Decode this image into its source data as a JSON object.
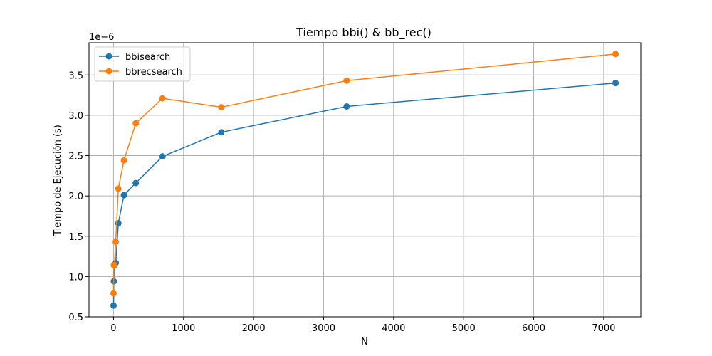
{
  "chart_data": {
    "type": "line",
    "title": "Tiempo bbi() & bb_rec()",
    "xlabel": "N",
    "ylabel": "Tiempo de Ejecución (s)",
    "y_scale_label": "1e−6",
    "xlim": [
      -350,
      7530
    ],
    "ylim": [
      5e-07,
      3.9e-06
    ],
    "x_ticks": [
      0,
      1000,
      2000,
      3000,
      4000,
      5000,
      6000,
      7000
    ],
    "x_tick_labels": [
      "0",
      "1000",
      "2000",
      "3000",
      "4000",
      "5000",
      "6000",
      "7000"
    ],
    "y_ticks": [
      5e-07,
      1e-06,
      1.5e-06,
      2e-06,
      2.5e-06,
      3e-06,
      3.5e-06
    ],
    "y_tick_labels": [
      "0.5",
      "1.0",
      "1.5",
      "2.0",
      "2.5",
      "3.0",
      "3.5"
    ],
    "grid": true,
    "legend_position": "top-left",
    "x": [
      1,
      5,
      14,
      32,
      69,
      149,
      318,
      700,
      1540,
      3330,
      7170
    ],
    "series": [
      {
        "name": "bbisearch",
        "color": "#1f77b4",
        "values": [
          6.4e-07,
          9.4e-07,
          1.15e-06,
          1.17e-06,
          1.66e-06,
          2.01e-06,
          2.16e-06,
          2.49e-06,
          2.79e-06,
          3.11e-06,
          3.4e-06
        ]
      },
      {
        "name": "bbrecsearch",
        "color": "#ff7f0e",
        "values": [
          7.9e-07,
          1.14e-06,
          1.14e-06,
          1.43e-06,
          2.09e-06,
          2.44e-06,
          2.9e-06,
          3.21e-06,
          3.1e-06,
          3.43e-06,
          3.76e-06
        ]
      }
    ]
  }
}
